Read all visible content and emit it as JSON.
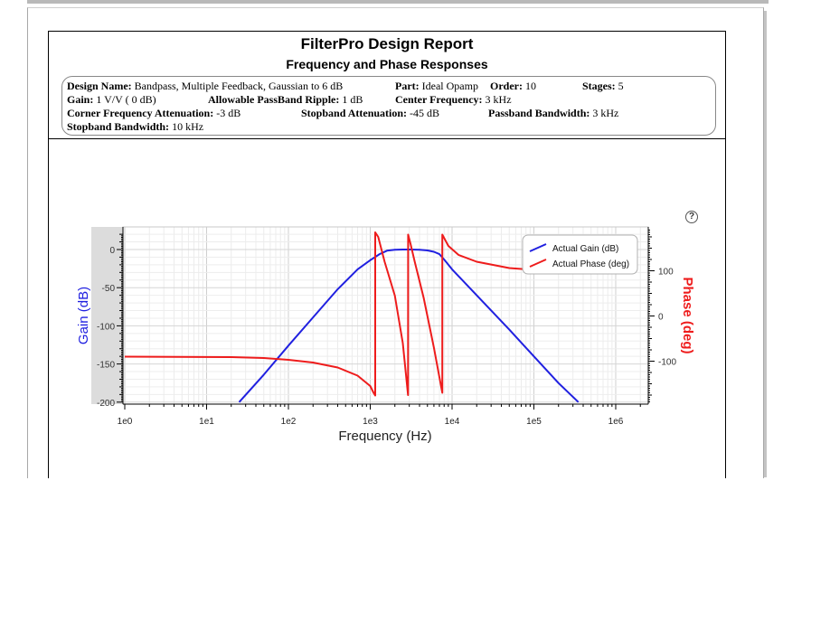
{
  "report": {
    "title": "FilterPro Design Report",
    "subtitle": "Frequency and Phase Responses"
  },
  "design": {
    "name_label": "Design Name:",
    "name_value": "Bandpass, Multiple Feedback, Gaussian to 6 dB",
    "part_label": "Part:",
    "part_value": "Ideal Opamp",
    "order_label": "Order:",
    "order_value": "10",
    "stages_label": "Stages:",
    "stages_value": "5",
    "gain_label": "Gain:",
    "gain_value": "1 V/V ( 0 dB)",
    "ripple_label": "Allowable PassBand Ripple:",
    "ripple_value": "1 dB",
    "center_label": "Center Frequency:",
    "center_value": "3 kHz",
    "corner_label": "Corner Frequency Attenuation:",
    "corner_value": "-3 dB",
    "stopatt_label": "Stopband Attenuation:",
    "stopatt_value": "-45 dB",
    "passbw_label": "Passband Bandwidth:",
    "passbw_value": "3 kHz",
    "stopbw_label": "Stopband Bandwidth:",
    "stopbw_value": "10 kHz"
  },
  "help_icon": "question-circle-icon",
  "chart_data": {
    "type": "line",
    "xscale": "log",
    "xlabel": "Frequency (Hz)",
    "ylabel": "Gain (dB)",
    "y2label": "Phase (deg)",
    "xlim": [
      1,
      5000000
    ],
    "ylim": [
      -200,
      20
    ],
    "y2lim": [
      -190,
      195
    ],
    "x_ticks": [
      "1e0",
      "1e1",
      "1e2",
      "1e3",
      "1e4",
      "1e5",
      "1e6"
    ],
    "y_ticks": [
      "0",
      "-50",
      "-100",
      "-150",
      "-200"
    ],
    "y2_ticks": [
      "100",
      "0",
      "-100"
    ],
    "legend_position": "top-right",
    "gain_color": "#2020e0",
    "phase_color": "#ee1c1c",
    "series": [
      {
        "name": "Actual Gain (dB)",
        "axis": "left",
        "color": "#2020e0",
        "x": [
          25,
          50,
          100,
          200,
          400,
          700,
          1000,
          1300,
          1600,
          2000,
          2500,
          3000,
          4000,
          5000,
          6000,
          7000,
          8000,
          10000,
          20000,
          50000,
          100000,
          200000,
          350000
        ],
        "y": [
          -200,
          -164,
          -126,
          -89,
          -52,
          -26,
          -14,
          -6,
          -1.5,
          -0.3,
          0,
          0,
          -0.4,
          -1.2,
          -3,
          -6,
          -13,
          -26,
          -60,
          -105,
          -140,
          -175,
          -200
        ]
      },
      {
        "name": "Actual Phase (deg)",
        "axis": "right",
        "color": "#ee1c1c",
        "x": [
          1,
          20,
          50,
          100,
          200,
          400,
          700,
          1000,
          1100,
          1150,
          1151,
          1250,
          1500,
          2000,
          2500,
          2900,
          2901,
          3100,
          3500,
          4500,
          6000,
          7600,
          7601,
          9000,
          12000,
          20000,
          50000,
          100000,
          200000
        ],
        "y": [
          -90,
          -91,
          -93,
          -97,
          -103,
          -114,
          -132,
          -155,
          -170,
          -176,
          185,
          175,
          120,
          45,
          -60,
          -175,
          180,
          160,
          120,
          40,
          -70,
          -170,
          180,
          155,
          135,
          120,
          106,
          102,
          101
        ]
      }
    ]
  }
}
